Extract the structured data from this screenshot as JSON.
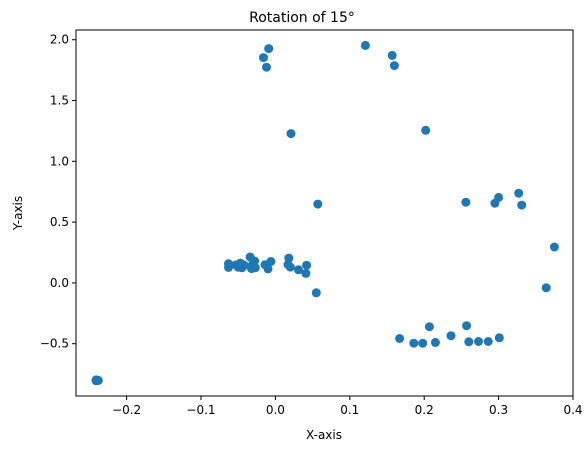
{
  "chart_data": {
    "type": "scatter",
    "title": "Rotation of 15°",
    "xlabel": "X-axis",
    "ylabel": "Y-axis",
    "xlim": [
      -0.268,
      0.4
    ],
    "ylim": [
      -0.93,
      2.08
    ],
    "xticks": [
      -0.2,
      -0.1,
      0.0,
      0.1,
      0.2,
      0.3,
      0.4
    ],
    "xtick_labels": [
      "−0.2",
      "−0.1",
      "0.0",
      "0.1",
      "0.2",
      "0.3",
      "0.4"
    ],
    "yticks": [
      -0.5,
      0.0,
      0.5,
      1.0,
      1.5,
      2.0
    ],
    "ytick_labels": [
      "−0.5",
      "0.0",
      "0.5",
      "1.0",
      "1.5",
      "2.0"
    ],
    "grid": false,
    "marker_color": "#1f77b4",
    "points": [
      {
        "x": -0.241,
        "y": -0.804
      },
      {
        "x": -0.24,
        "y": -0.801
      },
      {
        "x": -0.241,
        "y": -0.798
      },
      {
        "x": -0.238,
        "y": -0.802
      },
      {
        "x": -0.016,
        "y": 1.853
      },
      {
        "x": -0.009,
        "y": 1.927
      },
      {
        "x": -0.012,
        "y": 1.774
      },
      {
        "x": 0.021,
        "y": 1.228
      },
      {
        "x": 0.121,
        "y": 1.953
      },
      {
        "x": 0.157,
        "y": 1.871
      },
      {
        "x": 0.16,
        "y": 1.787
      },
      {
        "x": 0.202,
        "y": 1.255
      },
      {
        "x": 0.057,
        "y": 0.648
      },
      {
        "x": 0.256,
        "y": 0.664
      },
      {
        "x": 0.295,
        "y": 0.656
      },
      {
        "x": 0.3,
        "y": 0.703
      },
      {
        "x": 0.327,
        "y": 0.738
      },
      {
        "x": 0.331,
        "y": 0.64
      },
      {
        "x": 0.375,
        "y": 0.295
      },
      {
        "x": 0.364,
        "y": -0.04
      },
      {
        "x": -0.063,
        "y": 0.158
      },
      {
        "x": -0.063,
        "y": 0.128
      },
      {
        "x": -0.053,
        "y": 0.148
      },
      {
        "x": -0.05,
        "y": 0.129
      },
      {
        "x": -0.047,
        "y": 0.163
      },
      {
        "x": -0.045,
        "y": 0.124
      },
      {
        "x": -0.042,
        "y": 0.145
      },
      {
        "x": -0.034,
        "y": 0.213
      },
      {
        "x": -0.032,
        "y": 0.118
      },
      {
        "x": -0.031,
        "y": 0.148
      },
      {
        "x": -0.028,
        "y": 0.18
      },
      {
        "x": -0.027,
        "y": 0.125
      },
      {
        "x": -0.014,
        "y": 0.15
      },
      {
        "x": -0.01,
        "y": 0.115
      },
      {
        "x": -0.006,
        "y": 0.176
      },
      {
        "x": 0.017,
        "y": 0.151
      },
      {
        "x": 0.018,
        "y": 0.204
      },
      {
        "x": 0.02,
        "y": 0.13
      },
      {
        "x": 0.031,
        "y": 0.108
      },
      {
        "x": 0.041,
        "y": 0.078
      },
      {
        "x": 0.042,
        "y": 0.146
      },
      {
        "x": 0.055,
        "y": -0.081
      },
      {
        "x": 0.167,
        "y": -0.457
      },
      {
        "x": 0.186,
        "y": -0.496
      },
      {
        "x": 0.198,
        "y": -0.496
      },
      {
        "x": 0.207,
        "y": -0.36
      },
      {
        "x": 0.215,
        "y": -0.489
      },
      {
        "x": 0.236,
        "y": -0.434
      },
      {
        "x": 0.257,
        "y": -0.352
      },
      {
        "x": 0.26,
        "y": -0.484
      },
      {
        "x": 0.273,
        "y": -0.482
      },
      {
        "x": 0.286,
        "y": -0.482
      },
      {
        "x": 0.301,
        "y": -0.451
      }
    ]
  }
}
